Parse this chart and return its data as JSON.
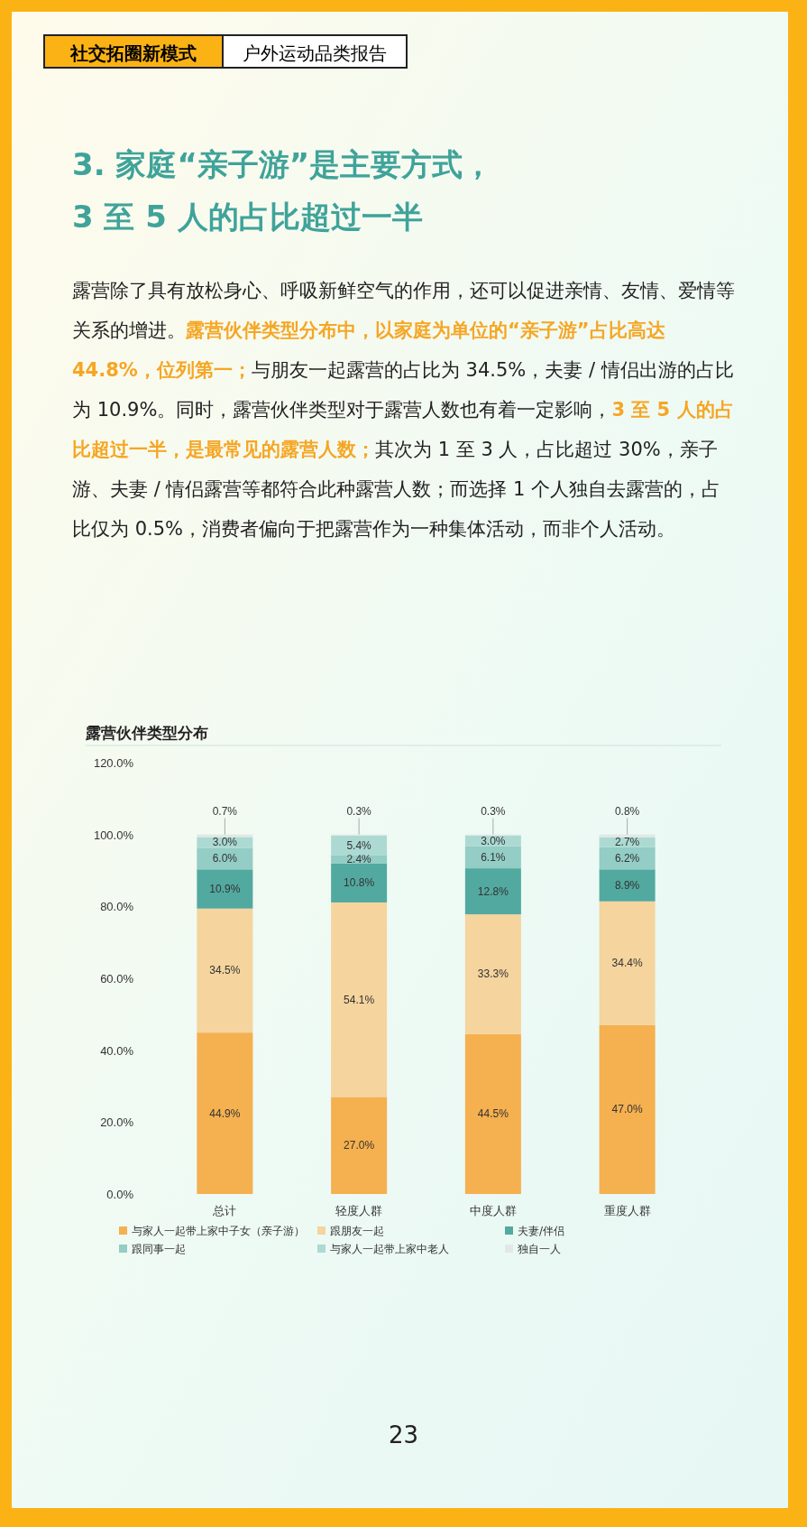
{
  "chart_data": {
    "type": "bar",
    "stacked": true,
    "title": "露营伙伴类型分布",
    "annotations": [
      "社交拓圈新模式",
      "户外运动品类报告",
      "3. 家庭“亲子游”是主要方式，",
      "3 至 5 人的占比超过一半",
      "露营除了具有放松身心、呼吸新鲜空气的作用，还可以促进亲情、友情、爱情等关系的增进。**露营伙伴类型分布中，以家庭为单位的“亲子游”占比高达 44.8%，位列第一；**与朋友一起露营的占比为 34.5%，夫妻 / 情侣出游的占比为 10.9%。同时，露营伙伴类型对于露营人数也有着一定影响，**3 至 5 人的占比超过一半，是最常见的露营人数；**其次为 1 至 3 人，占比超过 30%，亲子游、夫妻 / 情侣露营等都符合此种露营人数；而选择 1 个人独自去露营的，占比仅为 0.5%，消费者偏向于把露营作为一种集体活动，而非个人活动。",
      "23"
    ],
    "categories": [
      "总计",
      "轻度人群",
      "中度人群",
      "重度人群"
    ],
    "series": [
      {
        "name": "与家人一起带上家中子女（亲子游）",
        "color": "#f5b04f",
        "values": [
          44.9,
          27.0,
          44.5,
          47.0
        ],
        "value_labels": [
          "44.9%",
          "27.0%",
          "44.5%",
          "47.0%"
        ]
      },
      {
        "name": "跟朋友一起",
        "color": "#f5d49e",
        "values": [
          34.5,
          54.1,
          33.3,
          34.4
        ],
        "value_labels": [
          "34.5%",
          "54.1%",
          "33.3%",
          "34.4%"
        ]
      },
      {
        "name": "夫妻/伴侣",
        "color": "#52a9a0",
        "values": [
          10.9,
          10.8,
          12.8,
          8.9
        ],
        "value_labels": [
          "10.9%",
          "10.8%",
          "12.8%",
          "8.9%"
        ]
      },
      {
        "name": "跟同事一起",
        "color": "#93cdc5",
        "values": [
          6.0,
          2.4,
          6.1,
          6.2
        ],
        "value_labels": [
          "6.0%",
          "2.4%",
          "6.1%",
          "6.2%"
        ]
      },
      {
        "name": "与家人一起带上家中老人",
        "color": "#acdad3",
        "values": [
          3.0,
          5.4,
          3.0,
          2.7
        ],
        "value_labels": [
          "3.0%",
          "5.4%",
          "3.0%",
          "2.7%"
        ]
      },
      {
        "name": "独自一人",
        "color": "#e2e8e6",
        "values": [
          0.7,
          0.3,
          0.3,
          0.8
        ],
        "value_labels": [
          "0.7%",
          "0.3%",
          "0.3%",
          "0.8%"
        ]
      }
    ],
    "ylim": [
      0,
      120
    ],
    "yticks": [
      {
        "value": 0,
        "label": "0.0%"
      },
      {
        "value": 20,
        "label": "20.0%"
      },
      {
        "value": 40,
        "label": "40.0%"
      },
      {
        "value": 60,
        "label": "60.0%"
      },
      {
        "value": 80,
        "label": "80.0%"
      },
      {
        "value": 100,
        "label": "100.0%"
      },
      {
        "value": 120,
        "label": "120.0%"
      }
    ],
    "legend": "bottom"
  }
}
